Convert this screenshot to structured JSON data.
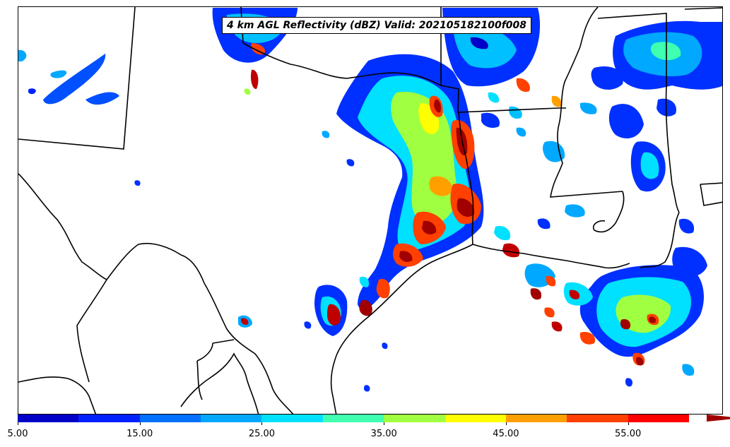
{
  "title": "4 km AGL Reflectivity (dBZ) Valid: 202105182100f008",
  "colorbar": {
    "colors": [
      "#0000c8",
      "#0020ff",
      "#0070ff",
      "#00a8ff",
      "#00e0ff",
      "#40ffb0",
      "#a0ff40",
      "#ffff00",
      "#ffa000",
      "#ff4000",
      "#ff0000",
      "#a00000"
    ],
    "tick_labels": [
      "5.00",
      "15.00",
      "25.00",
      "35.00",
      "45.00",
      "55.00"
    ]
  }
}
